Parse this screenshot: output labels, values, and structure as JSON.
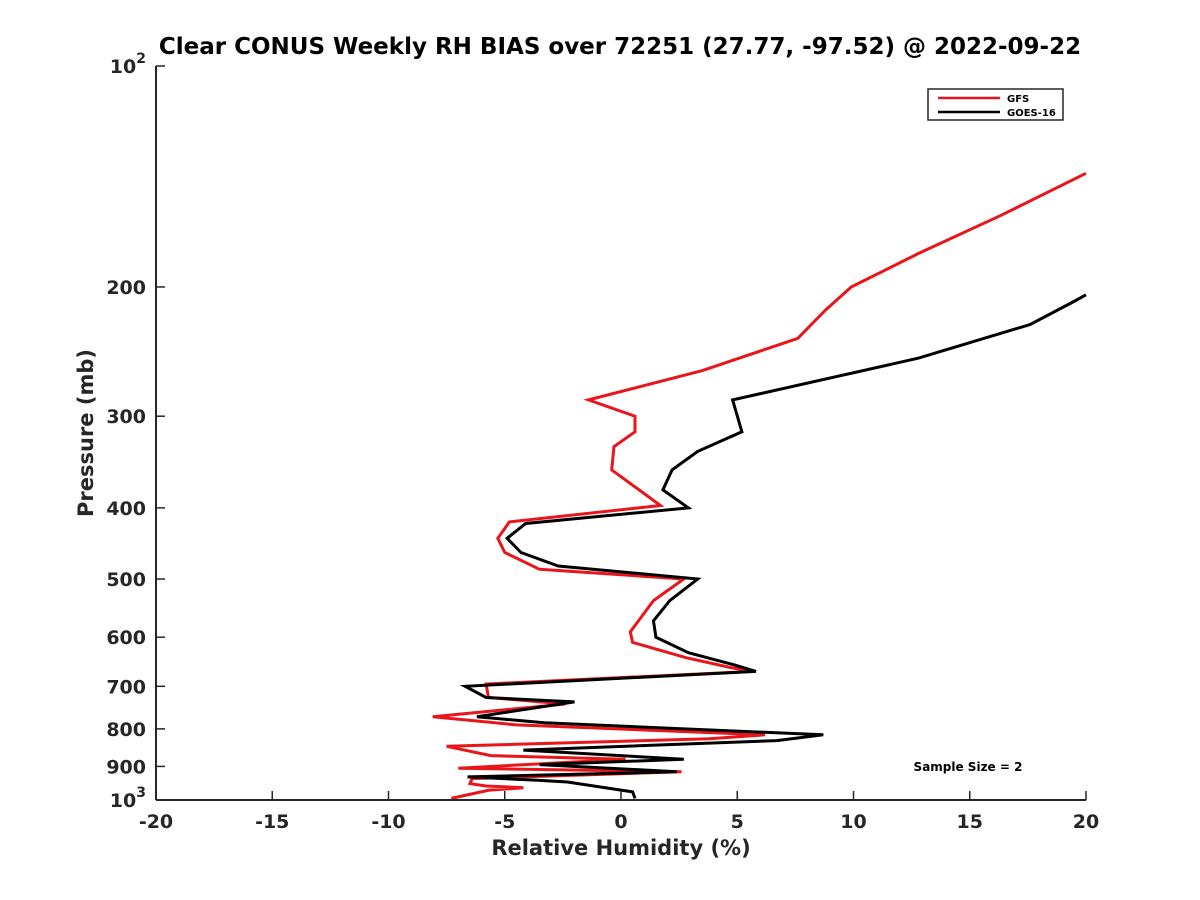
{
  "chart_data": {
    "type": "line",
    "title": "Clear CONUS Weekly RH BIAS over 72251 (27.77, -97.52) @ 2022-09-22",
    "xlabel": "Relative Humidity (%)",
    "ylabel": "Pressure (mb)",
    "xlim": [
      -20,
      20
    ],
    "ylim": [
      100,
      1000
    ],
    "y_scale": "log",
    "y_reversed": true,
    "grid": false,
    "legend_position": "top-right",
    "x_ticks": [
      {
        "value": -20,
        "label": "-20"
      },
      {
        "value": -15,
        "label": "-15"
      },
      {
        "value": -10,
        "label": "-10"
      },
      {
        "value": -5,
        "label": "-5"
      },
      {
        "value": 0,
        "label": "0"
      },
      {
        "value": 5,
        "label": "5"
      },
      {
        "value": 10,
        "label": "10"
      },
      {
        "value": 15,
        "label": "15"
      },
      {
        "value": 20,
        "label": "20"
      }
    ],
    "y_ticks": [
      {
        "value": 100,
        "base": "10",
        "exp": "2"
      },
      {
        "value": 200,
        "label": "200"
      },
      {
        "value": 300,
        "label": "300"
      },
      {
        "value": 400,
        "label": "400"
      },
      {
        "value": 500,
        "label": "500"
      },
      {
        "value": 600,
        "label": "600"
      },
      {
        "value": 700,
        "label": "700"
      },
      {
        "value": 800,
        "label": "800"
      },
      {
        "value": 900,
        "label": "900"
      },
      {
        "value": 1000,
        "base": "10",
        "exp": "3"
      }
    ],
    "annotation": "Sample Size = 2",
    "series": [
      {
        "name": "GFS",
        "color": "#e8161b",
        "points": [
          [
            20,
            140
          ],
          [
            16.3,
            160
          ],
          [
            12.8,
            180
          ],
          [
            9.9,
            200
          ],
          [
            8.8,
            215
          ],
          [
            7.6,
            235
          ],
          [
            3.5,
            260
          ],
          [
            -1.4,
            285
          ],
          [
            0.6,
            300
          ],
          [
            0.6,
            315
          ],
          [
            -0.3,
            330
          ],
          [
            -0.4,
            355
          ],
          [
            1.7,
            397
          ],
          [
            -4.8,
            418
          ],
          [
            -5.3,
            440
          ],
          [
            -5.0,
            460
          ],
          [
            -3.5,
            485
          ],
          [
            2.7,
            500
          ],
          [
            1.4,
            535
          ],
          [
            0.4,
            590
          ],
          [
            0.5,
            610
          ],
          [
            2.8,
            640
          ],
          [
            4.7,
            660
          ],
          [
            5.7,
            668
          ],
          [
            -5.8,
            695
          ],
          [
            -5.7,
            725
          ],
          [
            -2.4,
            740
          ],
          [
            -8.1,
            770
          ],
          [
            -4.5,
            790
          ],
          [
            6.2,
            815
          ],
          [
            3.8,
            825
          ],
          [
            -7.5,
            845
          ],
          [
            -5.6,
            870
          ],
          [
            0.2,
            880
          ],
          [
            -7.0,
            905
          ],
          [
            2.6,
            915
          ],
          [
            -6.4,
            935
          ],
          [
            -6.5,
            950
          ],
          [
            -5.8,
            957
          ],
          [
            -4.2,
            962
          ],
          [
            -5.7,
            970
          ],
          [
            -7.3,
            995
          ]
        ]
      },
      {
        "name": "GOES-16",
        "color": "#000000",
        "points": [
          [
            20,
            205
          ],
          [
            19.4,
            210
          ],
          [
            17.6,
            225
          ],
          [
            12.8,
            250
          ],
          [
            4.8,
            285
          ],
          [
            5.2,
            315
          ],
          [
            3.3,
            335
          ],
          [
            2.2,
            355
          ],
          [
            1.8,
            378
          ],
          [
            2.9,
            400
          ],
          [
            -4.1,
            420
          ],
          [
            -4.9,
            440
          ],
          [
            -4.3,
            460
          ],
          [
            -2.7,
            480
          ],
          [
            3.3,
            500
          ],
          [
            2.1,
            535
          ],
          [
            1.4,
            570
          ],
          [
            1.5,
            600
          ],
          [
            2.9,
            630
          ],
          [
            4.9,
            655
          ],
          [
            5.8,
            668
          ],
          [
            -6.7,
            700
          ],
          [
            -5.8,
            725
          ],
          [
            -2.0,
            735
          ],
          [
            -6.2,
            770
          ],
          [
            -3.3,
            785
          ],
          [
            8.7,
            815
          ],
          [
            6.7,
            830
          ],
          [
            -4.2,
            855
          ],
          [
            2.7,
            880
          ],
          [
            -3.5,
            895
          ],
          [
            2.4,
            915
          ],
          [
            -6.6,
            930
          ],
          [
            -3.6,
            940
          ],
          [
            -2.3,
            945
          ],
          [
            0.5,
            975
          ],
          [
            0.6,
            995
          ]
        ]
      }
    ]
  }
}
